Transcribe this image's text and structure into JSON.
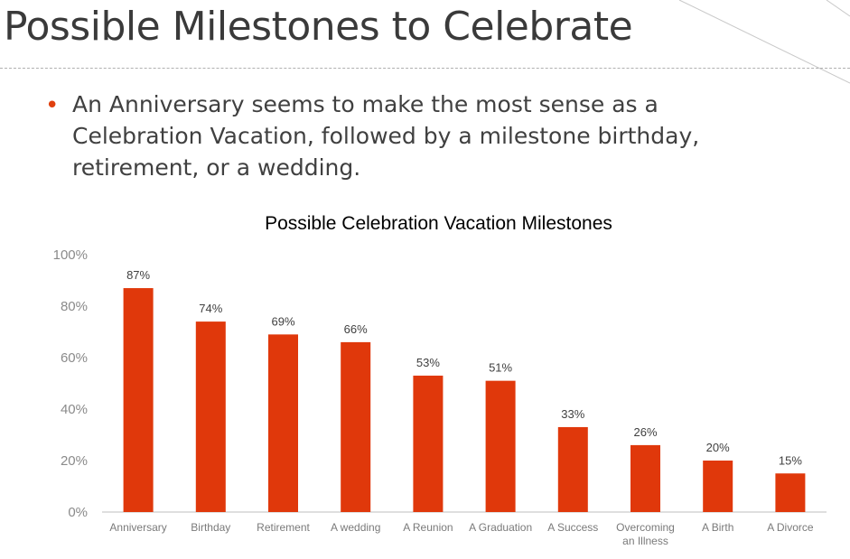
{
  "slide": {
    "title": "Possible Milestones to Celebrate",
    "bullet": "An Anniversary seems to make the most sense as a Celebration Vacation, followed by a milestone birthday, retirement, or a wedding."
  },
  "colors": {
    "bar": "#e0380b",
    "accent": "#e0400e",
    "title_text": "#3a3a3a",
    "axis": "#bfbfbf"
  },
  "chart_data": {
    "type": "bar",
    "title": "Possible Celebration Vacation Milestones",
    "xlabel": "",
    "ylabel": "",
    "ylim": [
      0,
      100
    ],
    "yticks": [
      "0%",
      "20%",
      "40%",
      "60%",
      "80%",
      "100%"
    ],
    "grid": false,
    "legend": "none",
    "categories": [
      [
        "Anniversary"
      ],
      [
        "Birthday"
      ],
      [
        "Retirement"
      ],
      [
        "A wedding"
      ],
      [
        "A Reunion"
      ],
      [
        "A Graduation"
      ],
      [
        "A Success"
      ],
      [
        "Overcoming",
        "an Illness"
      ],
      [
        "A Birth"
      ],
      [
        "A Divorce"
      ]
    ],
    "values": [
      87,
      74,
      69,
      66,
      53,
      51,
      33,
      26,
      20,
      15
    ],
    "data_labels": [
      "87%",
      "74%",
      "69%",
      "66%",
      "53%",
      "51%",
      "33%",
      "26%",
      "20%",
      "15%"
    ]
  }
}
